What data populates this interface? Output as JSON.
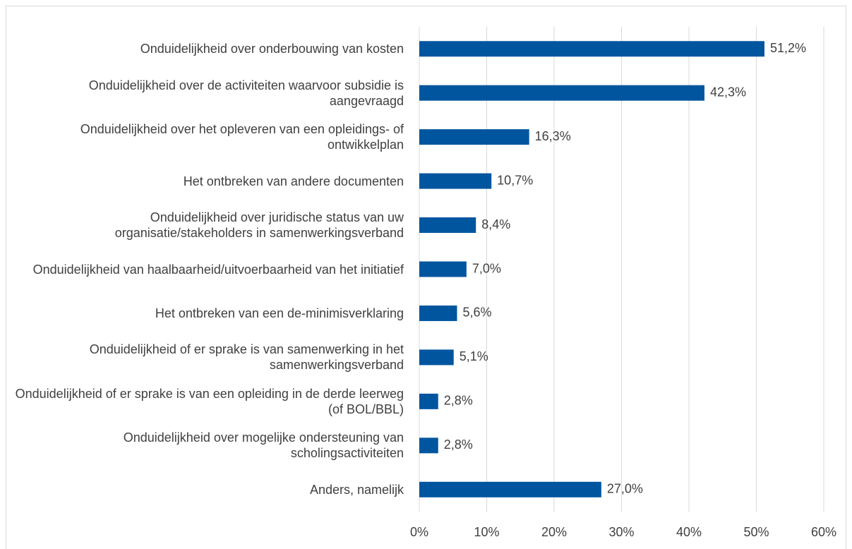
{
  "chart_data": {
    "type": "bar",
    "orientation": "horizontal",
    "categories": [
      "Onduidelijkheid over onderbouwing van kosten",
      "Onduidelijkheid over de activiteiten waarvoor subsidie is aangevraagd",
      "Onduidelijkheid over het opleveren van een opleidings- of ontwikkelplan",
      "Het ontbreken van andere documenten",
      "Onduidelijkheid over juridische status van uw organisatie/stakeholders in samenwerkingsverband",
      "Onduidelijkheid van haalbaarheid/uitvoerbaarheid van het initiatief",
      "Het ontbreken van een de-minimisverklaring",
      "Onduidelijkheid of er sprake is van samenwerking in het samenwerkingsverband",
      "Onduidelijkheid of er sprake is van een opleiding in de derde leerweg (of BOL/BBL)",
      "Onduidelijkheid over mogelijke ondersteuning van scholingsactiviteiten",
      "Anders, namelijk"
    ],
    "values": [
      51.2,
      42.3,
      16.3,
      10.7,
      8.4,
      7.0,
      5.6,
      5.1,
      2.8,
      2.8,
      27.0
    ],
    "value_labels": [
      "51,2%",
      "42,3%",
      "16,3%",
      "10,7%",
      "8,4%",
      "7,0%",
      "5,6%",
      "5,1%",
      "2,8%",
      "2,8%",
      "27,0%"
    ],
    "color": "#00559f",
    "xlim": [
      0,
      60
    ],
    "xticks": [
      {
        "value": 0,
        "label": "0%"
      },
      {
        "value": 10,
        "label": "10%"
      },
      {
        "value": 20,
        "label": "20%"
      },
      {
        "value": 30,
        "label": "30%"
      },
      {
        "value": 40,
        "label": "40%"
      },
      {
        "value": 50,
        "label": "50%"
      },
      {
        "value": 60,
        "label": "60%"
      }
    ],
    "grid": true
  }
}
